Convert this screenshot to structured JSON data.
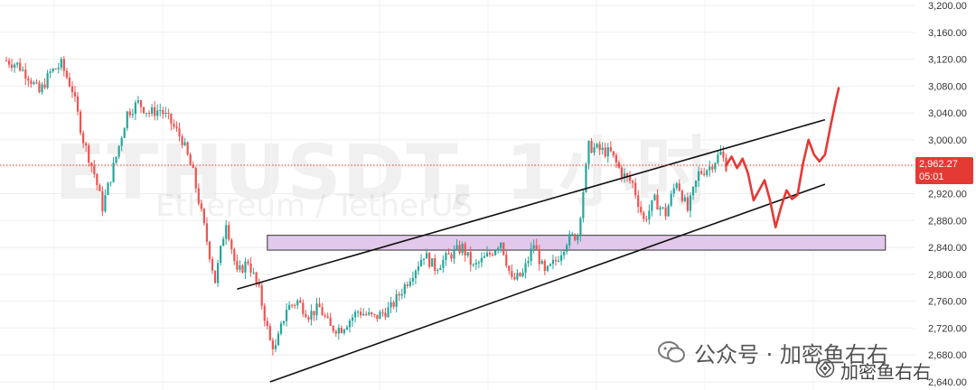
{
  "chart_data": {
    "type": "candlestick",
    "symbol_watermark": "ETHUSDT, 1小时",
    "name_watermark": "Ethereum / TetherUS",
    "y_axis": {
      "ticks": [
        "3,200.00",
        "3,160.00",
        "3,120.00",
        "3,080.00",
        "3,040.00",
        "3,000.00",
        "2,960.00",
        "2,920.00",
        "2,880.00",
        "2,840.00",
        "2,800.00",
        "2,760.00",
        "2,720.00",
        "2,680.00",
        "2,640.00"
      ],
      "ylim": [
        2630,
        3205
      ]
    },
    "current_price": {
      "value": 2962.27,
      "label": "2,962.27",
      "countdown": "05:01",
      "color": "#e53935"
    },
    "candles_anchors": [
      [
        0,
        3118
      ],
      [
        4,
        3112
      ],
      [
        8,
        3095
      ],
      [
        12,
        3070
      ],
      [
        16,
        3100
      ],
      [
        20,
        3112
      ],
      [
        24,
        3075
      ],
      [
        28,
        3000
      ],
      [
        32,
        2950
      ],
      [
        35,
        2900
      ],
      [
        40,
        2975
      ],
      [
        44,
        3040
      ],
      [
        48,
        3055
      ],
      [
        52,
        3040
      ],
      [
        56,
        3045
      ],
      [
        60,
        3025
      ],
      [
        64,
        3000
      ],
      [
        68,
        2950
      ],
      [
        72,
        2870
      ],
      [
        76,
        2790
      ],
      [
        80,
        2880
      ],
      [
        84,
        2800
      ],
      [
        88,
        2820
      ],
      [
        92,
        2775
      ],
      [
        96,
        2700
      ],
      [
        98,
        2690
      ],
      [
        102,
        2750
      ],
      [
        106,
        2760
      ],
      [
        110,
        2740
      ],
      [
        114,
        2750
      ],
      [
        118,
        2720
      ],
      [
        122,
        2720
      ],
      [
        128,
        2745
      ],
      [
        134,
        2735
      ],
      [
        140,
        2750
      ],
      [
        146,
        2790
      ],
      [
        152,
        2830
      ],
      [
        156,
        2810
      ],
      [
        162,
        2830
      ],
      [
        166,
        2840
      ],
      [
        170,
        2810
      ],
      [
        176,
        2830
      ],
      [
        180,
        2850
      ],
      [
        184,
        2790
      ],
      [
        188,
        2800
      ],
      [
        192,
        2845
      ],
      [
        196,
        2800
      ],
      [
        200,
        2820
      ],
      [
        204,
        2850
      ],
      [
        208,
        2860
      ],
      [
        212,
        2990
      ],
      [
        216,
        2985
      ],
      [
        220,
        2980
      ],
      [
        224,
        2950
      ],
      [
        228,
        2935
      ],
      [
        232,
        2880
      ],
      [
        236,
        2910
      ],
      [
        240,
        2890
      ],
      [
        244,
        2940
      ],
      [
        248,
        2895
      ],
      [
        252,
        2950
      ],
      [
        256,
        2960
      ],
      [
        260,
        2980
      ],
      [
        262,
        2962
      ]
    ],
    "candle_count": 263,
    "candle_colors": {
      "up": "#26a69a",
      "down": "#ef5350"
    },
    "channel_upper": [
      [
        84,
        2778
      ],
      [
        298,
        3030
      ]
    ],
    "channel_lower": [
      [
        96,
        2640
      ],
      [
        298,
        2934
      ]
    ],
    "support_zone": {
      "from": 2836,
      "to": 2858,
      "fill": "#e2c8ea",
      "stroke": "#333333"
    },
    "projection": {
      "color": "#e53935",
      "points": [
        [
          262,
          2962
        ],
        [
          264,
          2975
        ],
        [
          266,
          2958
        ],
        [
          268,
          2972
        ],
        [
          270,
          2950
        ],
        [
          272,
          2910
        ],
        [
          274,
          2925
        ],
        [
          276,
          2940
        ],
        [
          278,
          2910
        ],
        [
          280,
          2870
        ],
        [
          282,
          2900
        ],
        [
          284,
          2925
        ],
        [
          286,
          2912
        ],
        [
          288,
          2918
        ],
        [
          290,
          2965
        ],
        [
          292,
          3000
        ],
        [
          294,
          2978
        ],
        [
          296,
          2968
        ],
        [
          298,
          2978
        ],
        [
          300,
          3020
        ],
        [
          302,
          3060
        ],
        [
          303,
          3077
        ]
      ]
    }
  },
  "footer": {
    "wechat_text": "公众号 · 加密鱼右右",
    "corner_text": "加密鱼右右"
  },
  "colors": {
    "grid": "#eeeeee",
    "axis_text": "#333333",
    "trendline": "#111111"
  }
}
